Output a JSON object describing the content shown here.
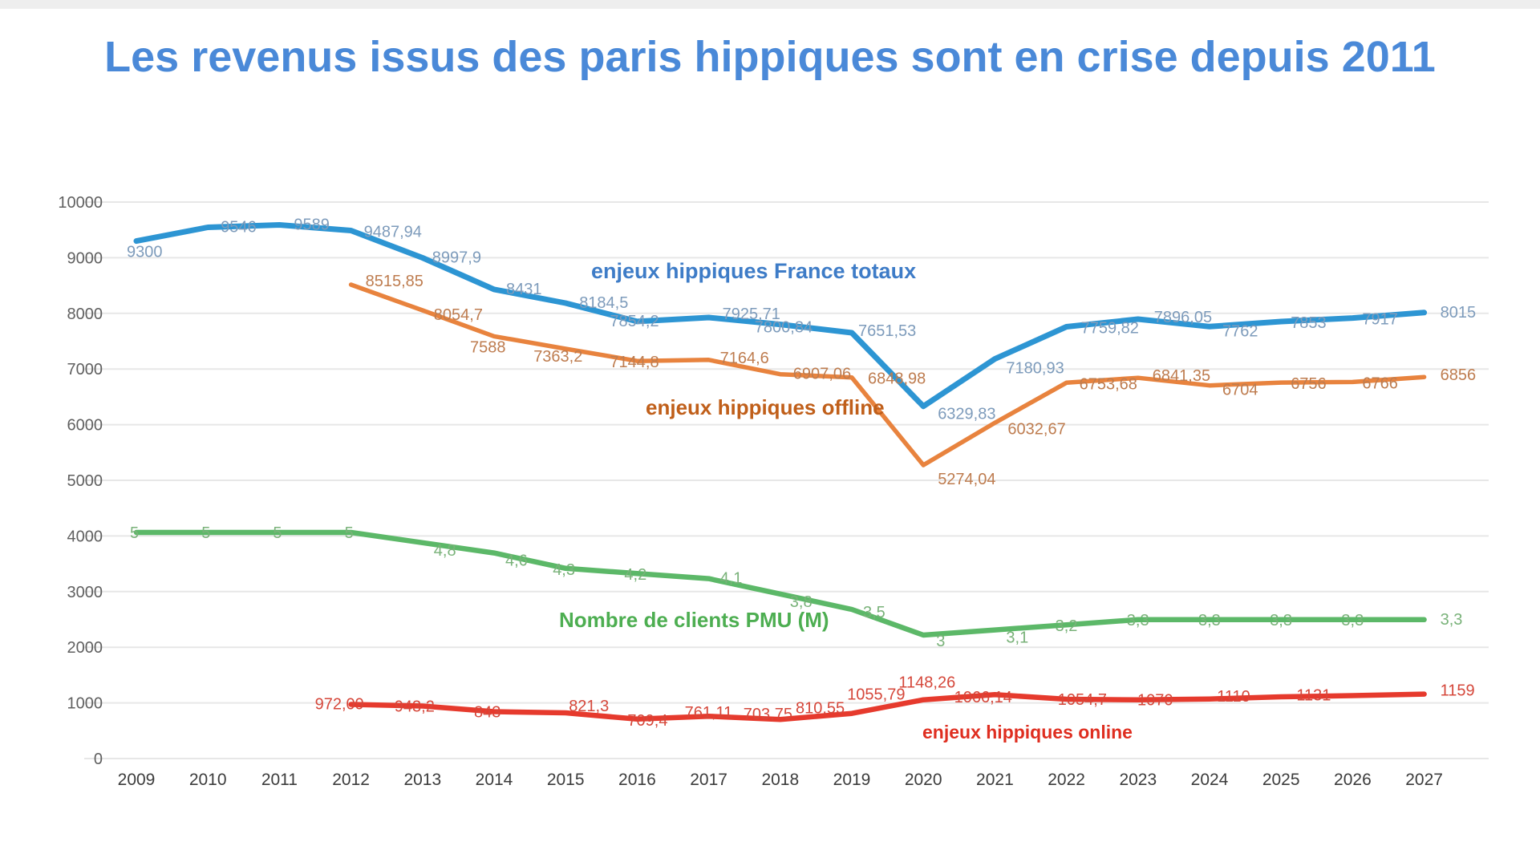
{
  "page": {
    "title": "Les revenus issus des paris hippiques sont en crise depuis 2011",
    "title_color": "#4a89d8",
    "background": "#ffffff"
  },
  "chart_data": {
    "type": "line",
    "title": "Les revenus issus des paris hippiques sont en crise depuis 2011",
    "x": [
      2009,
      2010,
      2011,
      2012,
      2013,
      2014,
      2015,
      2016,
      2017,
      2018,
      2019,
      2020,
      2021,
      2022,
      2023,
      2024,
      2025,
      2026,
      2027
    ],
    "xlabel": "",
    "ylabel": "",
    "ylim": [
      0,
      10000
    ],
    "y_ticks": [
      0,
      1000,
      2000,
      3000,
      4000,
      5000,
      6000,
      7000,
      8000,
      9000,
      10000
    ],
    "grid": true,
    "legend_position": "inline-annotations",
    "series": [
      {
        "name": "enjeux hippiques France totaux",
        "axis": "primary",
        "start_year": 2009,
        "color": "#2d95d3",
        "label_color": "#7d9bbb",
        "legend_color": "#3e7cc7",
        "values": [
          9300,
          9546,
          9589,
          9487.94,
          8997.9,
          8431,
          8184.5,
          7854.2,
          7925.71,
          7800.84,
          7651.53,
          6329.83,
          7180.93,
          7759.82,
          7896.05,
          7762,
          7853,
          7917,
          8015
        ],
        "labels": [
          "9300",
          "9546",
          "9589",
          "9487,94",
          "8997,9",
          "8431",
          "8184,5",
          "7854,2",
          "7925,71",
          "7800,84",
          "7651,53",
          "6329,83",
          "7180,93",
          "7759,82",
          "7896,05",
          "7762",
          "7853",
          "7917",
          "8015"
        ]
      },
      {
        "name": "enjeux hippiques offline",
        "axis": "primary",
        "start_year": 2012,
        "color": "#e8833e",
        "label_color": "#be7c4f",
        "legend_color": "#c05f1a",
        "values": [
          8515.85,
          8054.7,
          7588,
          7363.2,
          7144.8,
          7164.6,
          6907.06,
          6848.98,
          5274.04,
          6032.67,
          6753.68,
          6841.35,
          6704,
          6756,
          6766,
          6856
        ],
        "labels": [
          "8515,85",
          "8054,7",
          "7588",
          "7363,2",
          "7144,8",
          "7164,6",
          "6907,06",
          "6848,98",
          "5274,04",
          "6032,67",
          "6753,68",
          "6841,35",
          "6704",
          "6756",
          "6766",
          "6856"
        ]
      },
      {
        "name": "Nombre de clients PMU (M)",
        "axis": "secondary",
        "start_year": 2009,
        "color": "#5cb868",
        "label_color": "#79b279",
        "legend_color": "#4dae51",
        "values": [
          5,
          5,
          5,
          5,
          4.8,
          4.6,
          4.3,
          4.2,
          4.1,
          3.8,
          3.5,
          3,
          3.1,
          3.2,
          3.3,
          3.3,
          3.3,
          3.3,
          3.3
        ],
        "labels": [
          "5",
          "5",
          "5",
          "5",
          "4,8",
          "4,6",
          "4,3",
          "4,2",
          "4,1",
          "3,8",
          "3,5",
          "3",
          "3,1",
          "3,2",
          "3,3",
          "3,3",
          "3,3",
          "3,3",
          "3,3"
        ]
      },
      {
        "name": "enjeux hippiques online",
        "axis": "primary",
        "start_year": 2012,
        "color": "#e63a2d",
        "label_color": "#d5473a",
        "legend_color": "#df2e20",
        "values": [
          972.09,
          943.2,
          843,
          821.3,
          709.4,
          761.11,
          703.75,
          810.55,
          1055.79,
          1148.26,
          1066.14,
          1054.7,
          1070,
          1110,
          1131,
          1159
        ],
        "labels": [
          "972,09",
          "943,2",
          "843",
          "821,3",
          "709,4",
          "761,11",
          "703,75",
          "810,55",
          "1055,79",
          "1148,26",
          "1066,14",
          "1054,7",
          "1070",
          "1110",
          "1131",
          "1159"
        ]
      }
    ]
  }
}
